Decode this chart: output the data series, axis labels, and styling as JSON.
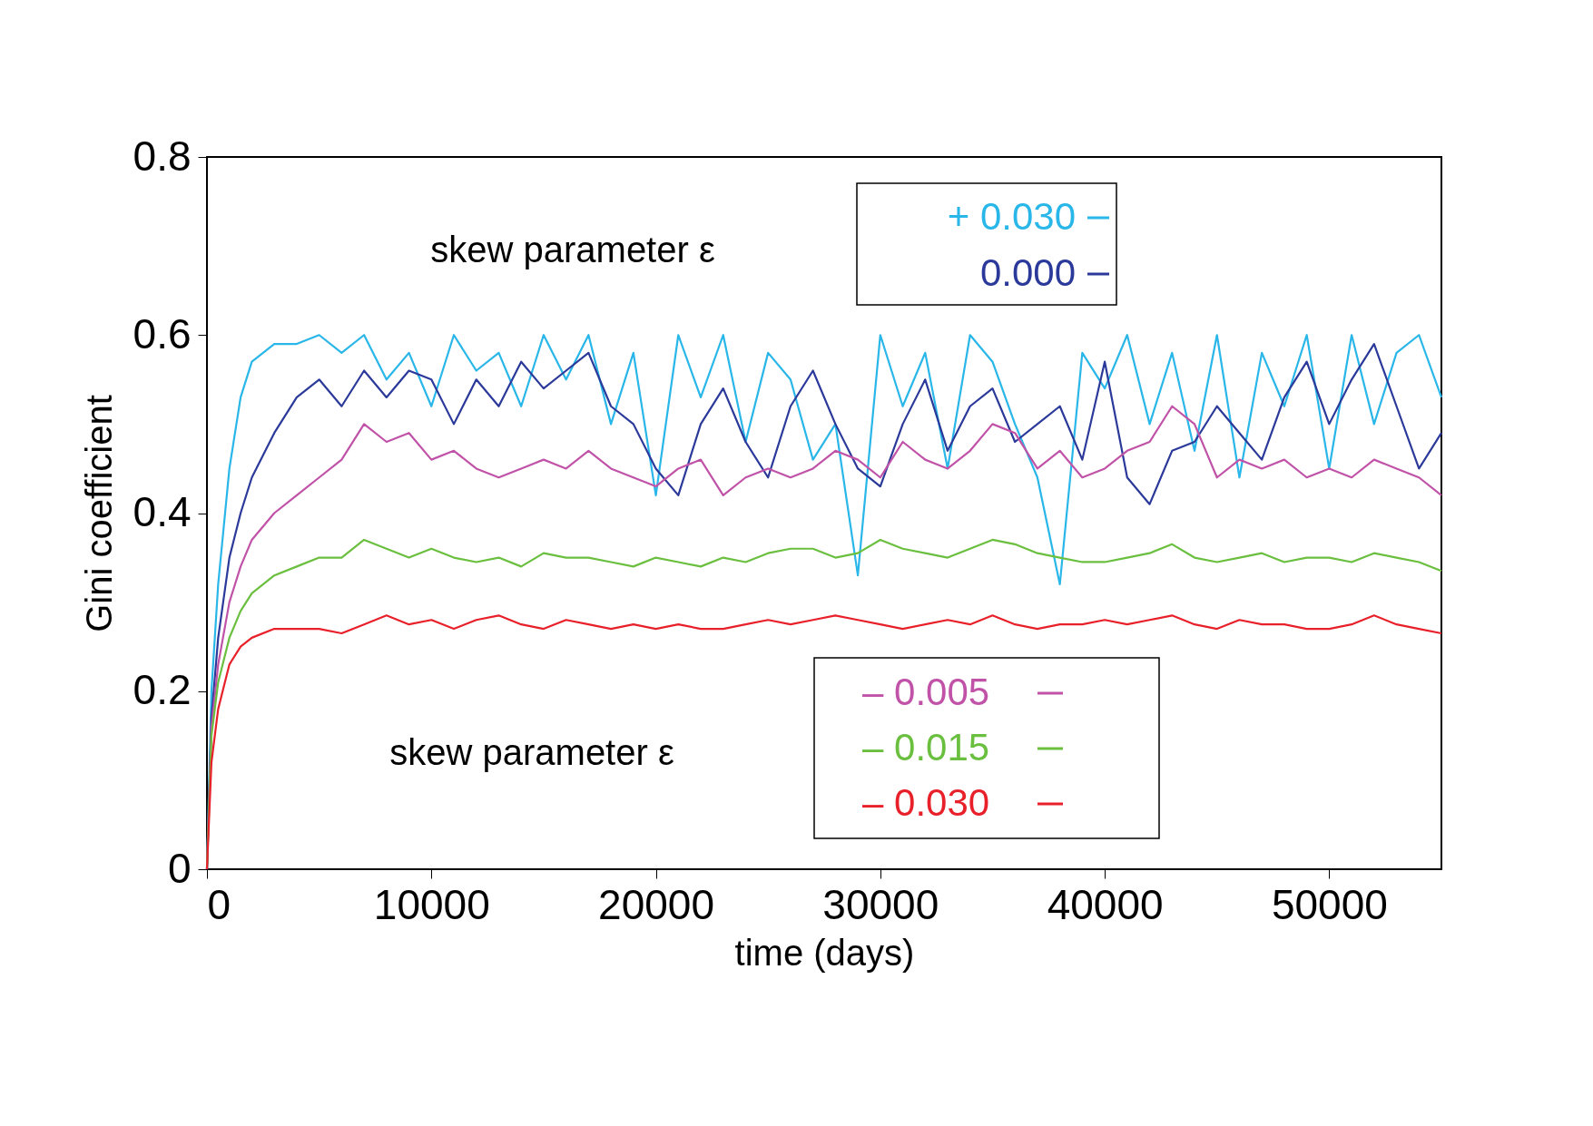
{
  "chart_data": {
    "type": "line",
    "xlabel": "time (days)",
    "ylabel": "Gini coefficient",
    "x": [
      0,
      200,
      500,
      1000,
      1500,
      2000,
      3000,
      4000,
      5000,
      6000,
      7000,
      8000,
      9000,
      10000,
      11000,
      12000,
      13000,
      14000,
      15000,
      16000,
      17000,
      18000,
      19000,
      20000,
      21000,
      22000,
      23000,
      24000,
      25000,
      26000,
      27000,
      28000,
      29000,
      30000,
      31000,
      32000,
      33000,
      34000,
      35000,
      36000,
      37000,
      38000,
      39000,
      40000,
      41000,
      42000,
      43000,
      44000,
      45000,
      46000,
      47000,
      48000,
      49000,
      50000,
      51000,
      52000,
      53000,
      54000,
      55000
    ],
    "series": [
      {
        "name": "+ 0.030",
        "color": "#29b6e8",
        "values": [
          0,
          0.2,
          0.32,
          0.45,
          0.53,
          0.57,
          0.59,
          0.59,
          0.6,
          0.58,
          0.6,
          0.55,
          0.58,
          0.52,
          0.6,
          0.56,
          0.58,
          0.52,
          0.6,
          0.55,
          0.6,
          0.5,
          0.58,
          0.42,
          0.6,
          0.53,
          0.6,
          0.48,
          0.58,
          0.55,
          0.46,
          0.5,
          0.33,
          0.6,
          0.52,
          0.58,
          0.45,
          0.6,
          0.57,
          0.5,
          0.44,
          0.32,
          0.58,
          0.54,
          0.6,
          0.5,
          0.58,
          0.47,
          0.6,
          0.44,
          0.58,
          0.52,
          0.6,
          0.45,
          0.6,
          0.5,
          0.58,
          0.6,
          0.53
        ]
      },
      {
        "name": "0.000",
        "color": "#2b3a9a",
        "values": [
          0,
          0.17,
          0.26,
          0.35,
          0.4,
          0.44,
          0.49,
          0.53,
          0.55,
          0.52,
          0.56,
          0.53,
          0.56,
          0.55,
          0.5,
          0.55,
          0.52,
          0.57,
          0.54,
          0.56,
          0.58,
          0.52,
          0.5,
          0.45,
          0.42,
          0.5,
          0.54,
          0.48,
          0.44,
          0.52,
          0.56,
          0.5,
          0.45,
          0.43,
          0.5,
          0.55,
          0.47,
          0.52,
          0.54,
          0.48,
          0.5,
          0.52,
          0.46,
          0.57,
          0.44,
          0.41,
          0.47,
          0.48,
          0.52,
          0.49,
          0.46,
          0.53,
          0.57,
          0.5,
          0.55,
          0.59,
          0.52,
          0.45,
          0.49
        ]
      },
      {
        "name": "– 0.005",
        "color": "#c052a8",
        "values": [
          0,
          0.16,
          0.23,
          0.3,
          0.34,
          0.37,
          0.4,
          0.42,
          0.44,
          0.46,
          0.5,
          0.48,
          0.49,
          0.46,
          0.47,
          0.45,
          0.44,
          0.45,
          0.46,
          0.45,
          0.47,
          0.45,
          0.44,
          0.43,
          0.45,
          0.46,
          0.42,
          0.44,
          0.45,
          0.44,
          0.45,
          0.47,
          0.46,
          0.44,
          0.48,
          0.46,
          0.45,
          0.47,
          0.5,
          0.49,
          0.45,
          0.47,
          0.44,
          0.45,
          0.47,
          0.48,
          0.52,
          0.5,
          0.44,
          0.46,
          0.45,
          0.46,
          0.44,
          0.45,
          0.44,
          0.46,
          0.45,
          0.44,
          0.42
        ]
      },
      {
        "name": "– 0.015",
        "color": "#6abf3f",
        "values": [
          0,
          0.15,
          0.21,
          0.26,
          0.29,
          0.31,
          0.33,
          0.34,
          0.35,
          0.35,
          0.37,
          0.36,
          0.35,
          0.36,
          0.35,
          0.345,
          0.35,
          0.34,
          0.355,
          0.35,
          0.35,
          0.345,
          0.34,
          0.35,
          0.345,
          0.34,
          0.35,
          0.345,
          0.355,
          0.36,
          0.36,
          0.35,
          0.355,
          0.37,
          0.36,
          0.355,
          0.35,
          0.36,
          0.37,
          0.365,
          0.355,
          0.35,
          0.345,
          0.345,
          0.35,
          0.355,
          0.365,
          0.35,
          0.345,
          0.35,
          0.355,
          0.345,
          0.35,
          0.35,
          0.345,
          0.355,
          0.35,
          0.345,
          0.335
        ]
      },
      {
        "name": "– 0.030",
        "color": "#e8202a",
        "values": [
          0,
          0.12,
          0.18,
          0.23,
          0.25,
          0.26,
          0.27,
          0.27,
          0.27,
          0.265,
          0.275,
          0.285,
          0.275,
          0.28,
          0.27,
          0.28,
          0.285,
          0.275,
          0.27,
          0.28,
          0.275,
          0.27,
          0.275,
          0.27,
          0.275,
          0.27,
          0.27,
          0.275,
          0.28,
          0.275,
          0.28,
          0.285,
          0.28,
          0.275,
          0.27,
          0.275,
          0.28,
          0.275,
          0.285,
          0.275,
          0.27,
          0.275,
          0.275,
          0.28,
          0.275,
          0.28,
          0.285,
          0.275,
          0.27,
          0.28,
          0.275,
          0.275,
          0.27,
          0.27,
          0.275,
          0.285,
          0.275,
          0.27,
          0.265
        ]
      }
    ],
    "xlim": [
      0,
      55000
    ],
    "xticks": [
      0,
      10000,
      20000,
      30000,
      40000,
      50000
    ],
    "ylim": [
      0,
      0.8
    ],
    "yticks": [
      0,
      0.2,
      0.4,
      0.6,
      0.8
    ],
    "grid": false,
    "legend": "top",
    "marker": "none",
    "line_style": "solid",
    "annotations": [
      "skew parameter   ε",
      "skew parameter   ε"
    ]
  }
}
